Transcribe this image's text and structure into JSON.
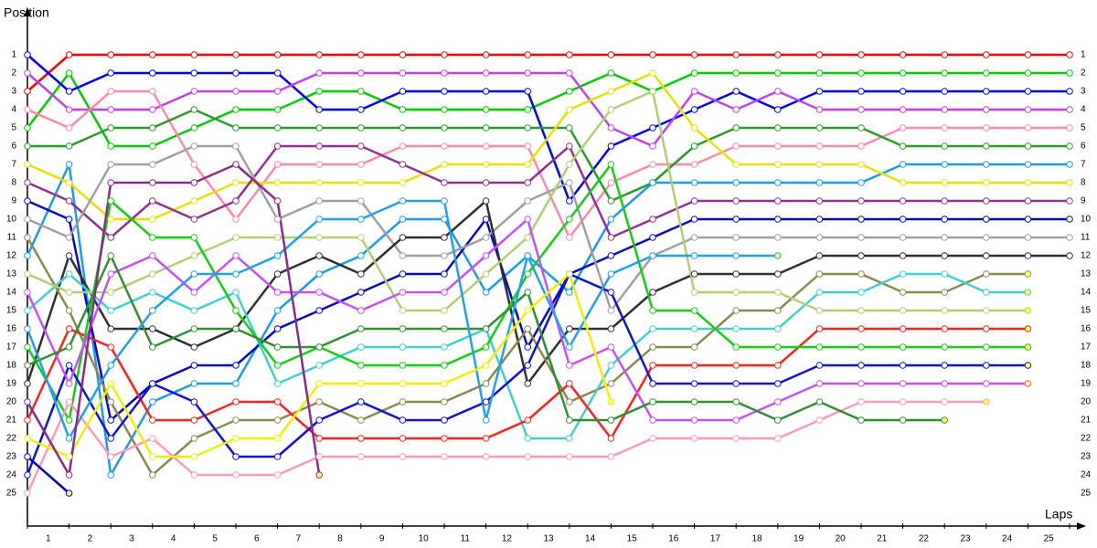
{
  "chart_data": {
    "type": "lap-chart",
    "y_label": "Position",
    "x_label": "Laps",
    "x": [
      0,
      1,
      2,
      3,
      4,
      5,
      6,
      7,
      8,
      9,
      10,
      11,
      12,
      13,
      14,
      15,
      16,
      17,
      18,
      19,
      20,
      21,
      22,
      23,
      24,
      25
    ],
    "xlim": [
      0,
      25
    ],
    "ylim": [
      1,
      25
    ],
    "xticks": [
      {
        "value": 0.5,
        "label": "1"
      },
      {
        "value": 1.5,
        "label": "2"
      },
      {
        "value": 2.5,
        "label": "3"
      },
      {
        "value": 3.5,
        "label": "4"
      },
      {
        "value": 4.5,
        "label": "5"
      },
      {
        "value": 5.5,
        "label": "6"
      },
      {
        "value": 6.5,
        "label": "7"
      },
      {
        "value": 7.5,
        "label": "8"
      },
      {
        "value": 8.5,
        "label": "9"
      },
      {
        "value": 9.5,
        "label": "10"
      },
      {
        "value": 10.5,
        "label": "11"
      },
      {
        "value": 11.5,
        "label": "12"
      },
      {
        "value": 12.5,
        "label": "13"
      },
      {
        "value": 13.5,
        "label": "14"
      },
      {
        "value": 14.5,
        "label": "15"
      },
      {
        "value": 15.5,
        "label": "16"
      },
      {
        "value": 16.5,
        "label": "17"
      },
      {
        "value": 17.5,
        "label": "18"
      },
      {
        "value": 18.5,
        "label": "19"
      },
      {
        "value": 19.5,
        "label": "20"
      },
      {
        "value": 20.5,
        "label": "21"
      },
      {
        "value": 21.5,
        "label": "22"
      },
      {
        "value": 22.5,
        "label": "23"
      },
      {
        "value": 23.5,
        "label": "24"
      },
      {
        "value": 24.5,
        "label": "25"
      }
    ],
    "yticks": [
      1,
      2,
      3,
      4,
      5,
      6,
      7,
      8,
      9,
      10,
      11,
      12,
      13,
      14,
      15,
      16,
      17,
      18,
      19,
      20,
      21,
      22,
      23,
      24,
      25
    ],
    "y_inverted": true,
    "series": [
      {
        "color": "#ff0000",
        "values": [
          3,
          1,
          1,
          1,
          1,
          1,
          1,
          1,
          1,
          1,
          1,
          1,
          1,
          1,
          1,
          1,
          1,
          1,
          1,
          1,
          1,
          1,
          1,
          1,
          1,
          1
        ]
      },
      {
        "color": "#00cc00",
        "values": [
          5,
          2,
          6,
          6,
          5,
          4,
          4,
          3,
          3,
          4,
          4,
          4,
          4,
          3,
          2,
          3,
          2,
          2,
          2,
          2,
          2,
          2,
          2,
          2,
          2,
          2
        ]
      },
      {
        "color": "#0000ff",
        "values": [
          1,
          3,
          2,
          2,
          2,
          2,
          2,
          4,
          4,
          3,
          3,
          3,
          3,
          9,
          6,
          5,
          4,
          3,
          4,
          3,
          3,
          3,
          3,
          3,
          3,
          3
        ]
      },
      {
        "color": "#c040f0",
        "values": [
          2,
          4,
          4,
          4,
          3,
          3,
          3,
          2,
          2,
          2,
          2,
          2,
          2,
          2,
          5,
          6,
          3,
          4,
          3,
          4,
          4,
          4,
          4,
          4,
          4,
          4
        ]
      },
      {
        "color": "#ff88aa",
        "values": [
          4,
          5,
          3,
          3,
          7,
          10,
          7,
          7,
          7,
          6,
          6,
          6,
          6,
          11,
          8,
          7,
          7,
          6,
          6,
          6,
          6,
          5,
          5,
          5,
          5,
          5
        ]
      },
      {
        "color": "#2a9a2a",
        "values": [
          6,
          6,
          5,
          5,
          4,
          5,
          5,
          5,
          5,
          5,
          5,
          5,
          5,
          5,
          9,
          8,
          6,
          5,
          5,
          5,
          5,
          6,
          6,
          6,
          6,
          6
        ]
      },
      {
        "color": "#1a9af0",
        "values": [
          12,
          7,
          24,
          20,
          19,
          19,
          15,
          13,
          12,
          10,
          10,
          14,
          12,
          14,
          10,
          8,
          8,
          8,
          8,
          8,
          8,
          7,
          7,
          7,
          7,
          7
        ]
      },
      {
        "color": "#e8e000",
        "values": [
          7,
          8,
          10,
          10,
          9,
          8,
          8,
          8,
          8,
          8,
          7,
          7,
          7,
          4,
          3,
          2,
          5,
          7,
          7,
          7,
          7,
          8,
          8,
          8,
          8,
          8
        ]
      },
      {
        "color": "#903090",
        "values": [
          8,
          9,
          11,
          9,
          10,
          9,
          6,
          6,
          6,
          7,
          8,
          8,
          8,
          6,
          11,
          10,
          9,
          9,
          9,
          9,
          9,
          9,
          9,
          9,
          9,
          9
        ]
      },
      {
        "color": "#0808c8",
        "values": [
          9,
          10,
          21,
          19,
          18,
          18,
          16,
          15,
          14,
          13,
          13,
          10,
          17,
          13,
          12,
          11,
          10,
          10,
          10,
          10,
          10,
          10,
          10,
          10,
          10,
          10
        ]
      },
      {
        "color": "#a0a0a0",
        "values": [
          10,
          11,
          7,
          7,
          6,
          6,
          10,
          9,
          9,
          12,
          12,
          11,
          9,
          8,
          15,
          12,
          11,
          11,
          11,
          11,
          11,
          11,
          11,
          11,
          11,
          11
        ]
      },
      {
        "color": "#303030",
        "values": [
          19,
          12,
          16,
          16,
          17,
          16,
          13,
          12,
          13,
          11,
          11,
          9,
          19,
          16,
          16,
          14,
          13,
          13,
          13,
          12,
          12,
          12,
          12,
          12,
          12,
          12
        ]
      },
      {
        "color": "#8a8a50",
        "values": [
          11,
          15,
          20,
          24,
          22,
          21,
          21,
          20,
          21,
          20,
          20,
          19,
          16,
          20,
          19,
          17,
          17,
          15,
          15,
          13,
          13,
          14,
          14,
          13,
          13,
          null
        ]
      },
      {
        "color": "#40d0d0",
        "values": [
          15,
          13,
          15,
          14,
          15,
          14,
          19,
          18,
          17,
          17,
          17,
          16,
          22,
          22,
          18,
          16,
          16,
          16,
          16,
          14,
          14,
          13,
          13,
          14,
          14,
          null
        ]
      },
      {
        "color": "#b0d070",
        "values": [
          13,
          14,
          14,
          13,
          12,
          11,
          11,
          11,
          11,
          15,
          15,
          13,
          11,
          7,
          4,
          3,
          14,
          14,
          14,
          15,
          15,
          15,
          15,
          15,
          15,
          null
        ]
      },
      {
        "color": "#ff2020",
        "values": [
          21,
          16,
          17,
          21,
          21,
          20,
          20,
          22,
          22,
          22,
          22,
          22,
          21,
          19,
          22,
          18,
          18,
          18,
          18,
          16,
          16,
          16,
          16,
          16,
          16,
          null
        ]
      },
      {
        "color": "#10d010",
        "values": [
          17,
          21,
          9,
          11,
          11,
          15,
          18,
          17,
          18,
          18,
          18,
          17,
          13,
          10,
          7,
          15,
          15,
          17,
          17,
          17,
          17,
          17,
          17,
          17,
          17,
          null
        ]
      },
      {
        "color": "#1010e0",
        "values": [
          24,
          18,
          22,
          19,
          20,
          23,
          23,
          21,
          20,
          21,
          21,
          20,
          18,
          13,
          14,
          19,
          19,
          19,
          19,
          18,
          18,
          18,
          18,
          18,
          18,
          null
        ]
      },
      {
        "color": "#c850f8",
        "values": [
          14,
          19,
          13,
          12,
          14,
          12,
          14,
          14,
          15,
          14,
          14,
          12,
          10,
          18,
          17,
          21,
          21,
          21,
          20,
          19,
          19,
          19,
          19,
          19,
          19,
          null
        ]
      },
      {
        "color": "#ff99bb",
        "values": [
          25,
          20,
          23,
          22,
          24,
          24,
          24,
          23,
          23,
          23,
          23,
          23,
          23,
          23,
          23,
          22,
          22,
          22,
          22,
          21,
          20,
          20,
          20,
          20,
          null,
          null
        ]
      },
      {
        "color": "#309030",
        "values": [
          18,
          17,
          12,
          17,
          16,
          16,
          17,
          17,
          16,
          16,
          16,
          16,
          14,
          21,
          21,
          20,
          20,
          20,
          21,
          20,
          21,
          21,
          21,
          null,
          null,
          null
        ]
      },
      {
        "color": "#20a0f0",
        "values": [
          16,
          22,
          18,
          15,
          13,
          13,
          12,
          10,
          10,
          9,
          9,
          21,
          12,
          17,
          13,
          12,
          12,
          12,
          12,
          null,
          null,
          null,
          null,
          null,
          null,
          null
        ]
      },
      {
        "color": "#f0f000",
        "values": [
          22,
          23,
          19,
          23,
          23,
          22,
          22,
          19,
          19,
          19,
          19,
          18,
          15,
          13,
          20,
          null,
          null,
          null,
          null,
          null,
          null,
          null,
          null,
          null,
          null,
          null
        ]
      },
      {
        "color": "#8a2a8a",
        "values": [
          20,
          24,
          8,
          8,
          8,
          7,
          9,
          24,
          null,
          null,
          null,
          null,
          null,
          null,
          null,
          null,
          null,
          null,
          null,
          null,
          null,
          null,
          null,
          null,
          null,
          null
        ]
      },
      {
        "color": "#0000c0",
        "values": [
          23,
          25,
          null,
          null,
          null,
          null,
          null,
          null,
          null,
          null,
          null,
          null,
          null,
          null,
          null,
          null,
          null,
          null,
          null,
          null,
          null,
          null,
          null,
          null,
          null,
          null
        ]
      }
    ]
  }
}
